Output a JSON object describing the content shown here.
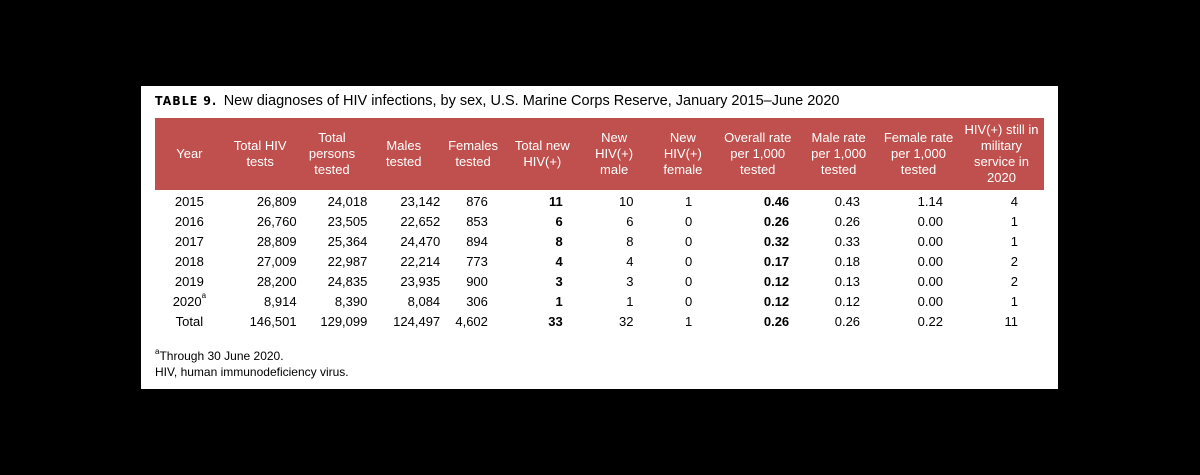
{
  "caption": {
    "label": "TABLE 9.",
    "title": "New diagnoses of HIV infections, by sex, U.S. Marine Corps Reserve, January 2015–June 2020"
  },
  "colors": {
    "header_bg": "#c0504d",
    "header_text": "#ffffff",
    "page_bg": "#000000",
    "panel_bg": "#ffffff"
  },
  "table": {
    "headers": [
      "Year",
      "Total HIV tests",
      "Total persons tested",
      "Males tested",
      "Females tested",
      "Total new HIV(+)",
      "New HIV(+) male",
      "New HIV(+) female",
      "Overall rate per 1,000 tested",
      "Male rate per 1,000 tested",
      "Female rate per 1,000 tested",
      "HIV(+) still in military service in 2020"
    ],
    "rows": [
      {
        "year": "2015",
        "year_sup": "",
        "total_tests": "26,809",
        "persons_tested": "24,018",
        "males_tested": "23,142",
        "females_tested": "876",
        "total_new": "11",
        "new_male": "10",
        "new_female": "1",
        "overall_rate": "0.46",
        "male_rate": "0.43",
        "female_rate": "1.14",
        "still_in_service": "4"
      },
      {
        "year": "2016",
        "year_sup": "",
        "total_tests": "26,760",
        "persons_tested": "23,505",
        "males_tested": "22,652",
        "females_tested": "853",
        "total_new": "6",
        "new_male": "6",
        "new_female": "0",
        "overall_rate": "0.26",
        "male_rate": "0.26",
        "female_rate": "0.00",
        "still_in_service": "1"
      },
      {
        "year": "2017",
        "year_sup": "",
        "total_tests": "28,809",
        "persons_tested": "25,364",
        "males_tested": "24,470",
        "females_tested": "894",
        "total_new": "8",
        "new_male": "8",
        "new_female": "0",
        "overall_rate": "0.32",
        "male_rate": "0.33",
        "female_rate": "0.00",
        "still_in_service": "1"
      },
      {
        "year": "2018",
        "year_sup": "",
        "total_tests": "27,009",
        "persons_tested": "22,987",
        "males_tested": "22,214",
        "females_tested": "773",
        "total_new": "4",
        "new_male": "4",
        "new_female": "0",
        "overall_rate": "0.17",
        "male_rate": "0.18",
        "female_rate": "0.00",
        "still_in_service": "2"
      },
      {
        "year": "2019",
        "year_sup": "",
        "total_tests": "28,200",
        "persons_tested": "24,835",
        "males_tested": "23,935",
        "females_tested": "900",
        "total_new": "3",
        "new_male": "3",
        "new_female": "0",
        "overall_rate": "0.12",
        "male_rate": "0.13",
        "female_rate": "0.00",
        "still_in_service": "2"
      },
      {
        "year": "2020",
        "year_sup": "a",
        "total_tests": "8,914",
        "persons_tested": "8,390",
        "males_tested": "8,084",
        "females_tested": "306",
        "total_new": "1",
        "new_male": "1",
        "new_female": "0",
        "overall_rate": "0.12",
        "male_rate": "0.12",
        "female_rate": "0.00",
        "still_in_service": "1"
      },
      {
        "year": "Total",
        "year_sup": "",
        "total_tests": "146,501",
        "persons_tested": "129,099",
        "males_tested": "124,497",
        "females_tested": "4,602",
        "total_new": "33",
        "new_male": "32",
        "new_female": "1",
        "overall_rate": "0.26",
        "male_rate": "0.26",
        "female_rate": "0.22",
        "still_in_service": "11"
      }
    ]
  },
  "footnotes": {
    "a_marker": "a",
    "a_text": "Through 30 June 2020.",
    "abbrev": "HIV, human immunodeficiency virus."
  }
}
